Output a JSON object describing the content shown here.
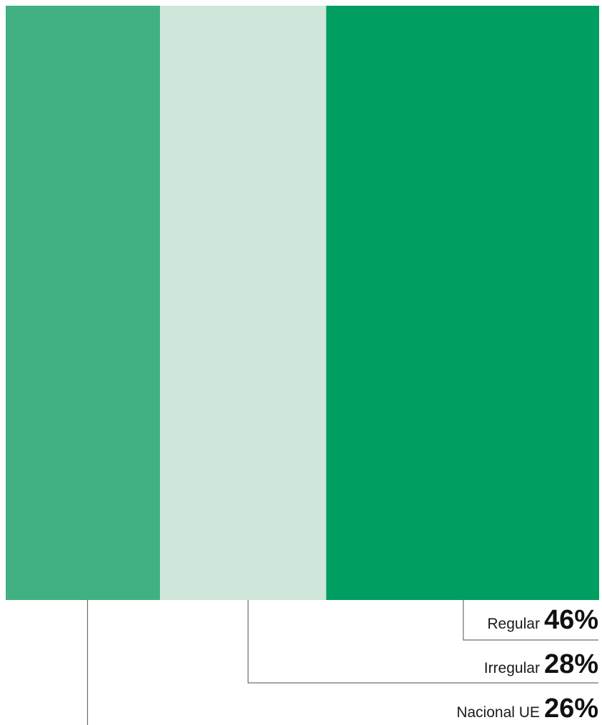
{
  "chart_data": {
    "type": "bar",
    "stacked": true,
    "orientation": "horizontal",
    "unit": "%",
    "categories": [
      "Nacional UE",
      "Irregular",
      "Regular"
    ],
    "values": [
      26,
      28,
      46
    ],
    "value_labels": [
      "26%",
      "28%",
      "46%"
    ],
    "colors": [
      "#41b082",
      "#cfe6da",
      "#009f61"
    ],
    "title": "",
    "xlabel": "",
    "ylabel": "",
    "legend": "none"
  }
}
